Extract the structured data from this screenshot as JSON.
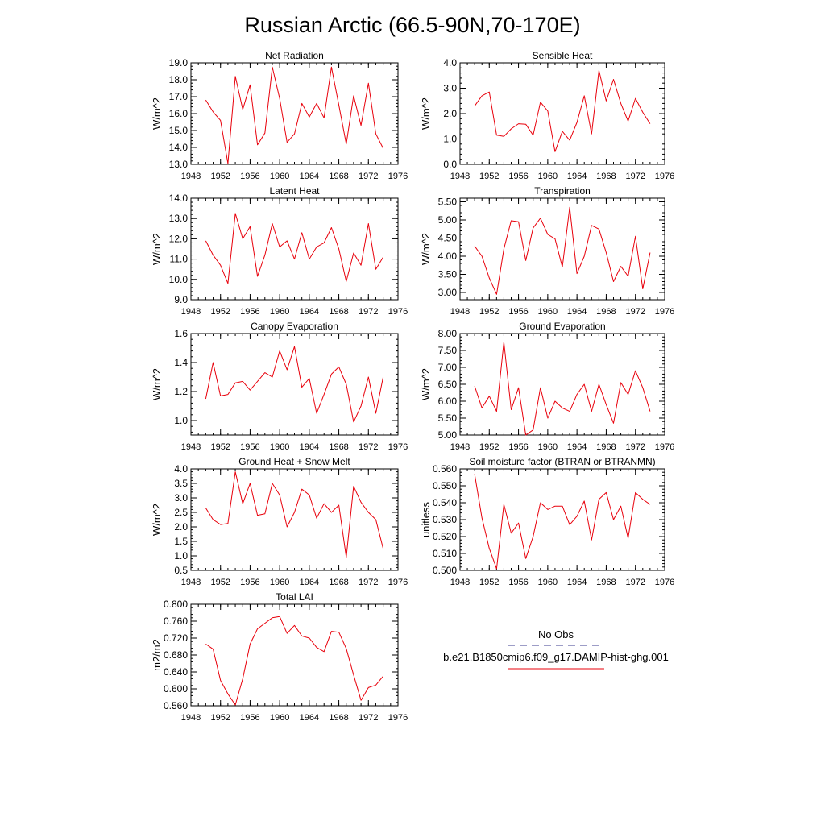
{
  "title": "Russian Arctic (66.5-90N,70-170E)",
  "colors": {
    "model_line": "#e8000b",
    "obs_line": "#3b3b8f",
    "axis": "#000000"
  },
  "legend": {
    "obs_label": "No Obs",
    "model_label": "b.e21.B1850cmip6.f09_g17.DAMIP-hist-ghg.001"
  },
  "chart_data": [
    {
      "type": "line",
      "title": "Net Radiation",
      "ylabel": "W/m^2",
      "xlim": [
        1948,
        1976
      ],
      "ylim": [
        13.0,
        19.0
      ],
      "xticks": [
        "1948",
        "1952",
        "1956",
        "1960",
        "1964",
        "1968",
        "1972",
        "1976"
      ],
      "yticks": [
        "13.0",
        "14.0",
        "15.0",
        "16.0",
        "17.0",
        "18.0",
        "19.0"
      ],
      "x": [
        1950,
        1951,
        1952,
        1953,
        1954,
        1955,
        1956,
        1957,
        1958,
        1959,
        1960,
        1961,
        1962,
        1963,
        1964,
        1965,
        1966,
        1967,
        1968,
        1969,
        1970,
        1971,
        1972,
        1973,
        1974
      ],
      "series": [
        {
          "values": [
            16.8,
            16.1,
            15.6,
            13.05,
            18.2,
            16.25,
            17.7,
            14.15,
            14.85,
            18.75,
            16.9,
            14.3,
            14.8,
            16.6,
            15.8,
            16.6,
            15.75,
            18.75,
            16.5,
            14.2,
            17.05,
            15.3,
            17.8,
            14.8,
            13.95
          ]
        }
      ]
    },
    {
      "type": "line",
      "title": "Sensible Heat",
      "ylabel": "W/m^2",
      "xlim": [
        1948,
        1976
      ],
      "ylim": [
        0.0,
        4.0
      ],
      "xticks": [
        "1948",
        "1952",
        "1956",
        "1960",
        "1964",
        "1968",
        "1972",
        "1976"
      ],
      "yticks": [
        "0.0",
        "1.0",
        "2.0",
        "3.0",
        "4.0"
      ],
      "x": [
        1950,
        1951,
        1952,
        1953,
        1954,
        1955,
        1956,
        1957,
        1958,
        1959,
        1960,
        1961,
        1962,
        1963,
        1964,
        1965,
        1966,
        1967,
        1968,
        1969,
        1970,
        1971,
        1972,
        1973,
        1974
      ],
      "series": [
        {
          "values": [
            2.3,
            2.7,
            2.85,
            1.15,
            1.1,
            1.4,
            1.6,
            1.58,
            1.15,
            2.45,
            2.1,
            0.5,
            1.3,
            0.95,
            1.65,
            2.7,
            1.2,
            3.7,
            2.5,
            3.35,
            2.4,
            1.7,
            2.6,
            2.05,
            1.6
          ]
        }
      ]
    },
    {
      "type": "line",
      "title": "Latent Heat",
      "ylabel": "W/m^2",
      "xlim": [
        1948,
        1976
      ],
      "ylim": [
        9.0,
        14.0
      ],
      "xticks": [
        "1948",
        "1952",
        "1956",
        "1960",
        "1964",
        "1968",
        "1972",
        "1976"
      ],
      "yticks": [
        "9.0",
        "10.0",
        "11.0",
        "12.0",
        "13.0",
        "14.0"
      ],
      "x": [
        1950,
        1951,
        1952,
        1953,
        1954,
        1955,
        1956,
        1957,
        1958,
        1959,
        1960,
        1961,
        1962,
        1963,
        1964,
        1965,
        1966,
        1967,
        1968,
        1969,
        1970,
        1971,
        1972,
        1973,
        1974
      ],
      "series": [
        {
          "values": [
            11.9,
            11.2,
            10.7,
            9.8,
            13.25,
            12.0,
            12.6,
            10.15,
            11.2,
            12.75,
            11.6,
            11.9,
            11.0,
            12.3,
            11.0,
            11.6,
            11.8,
            12.55,
            11.5,
            9.9,
            11.3,
            10.7,
            12.75,
            10.5,
            11.1
          ]
        }
      ]
    },
    {
      "type": "line",
      "title": "Transpiration",
      "ylabel": "W/m^2",
      "xlim": [
        1948,
        1976
      ],
      "ylim": [
        2.8,
        5.6
      ],
      "xticks": [
        "1948",
        "1952",
        "1956",
        "1960",
        "1964",
        "1968",
        "1972",
        "1976"
      ],
      "yticks": [
        "3.00",
        "3.50",
        "4.00",
        "4.50",
        "5.00",
        "5.50"
      ],
      "ytick_values": [
        3.0,
        3.5,
        4.0,
        4.5,
        5.0,
        5.5
      ],
      "x": [
        1950,
        1951,
        1952,
        1953,
        1954,
        1955,
        1956,
        1957,
        1958,
        1959,
        1960,
        1961,
        1962,
        1963,
        1964,
        1965,
        1966,
        1967,
        1968,
        1969,
        1970,
        1971,
        1972,
        1973,
        1974
      ],
      "series": [
        {
          "values": [
            4.28,
            4.0,
            3.4,
            2.95,
            4.2,
            4.98,
            4.95,
            3.88,
            4.78,
            5.05,
            4.6,
            4.48,
            3.7,
            5.35,
            3.52,
            4.0,
            4.85,
            4.75,
            4.1,
            3.3,
            3.72,
            3.45,
            4.55,
            3.1,
            4.1
          ]
        }
      ]
    },
    {
      "type": "line",
      "title": "Canopy Evaporation",
      "ylabel": "W/m^2",
      "xlim": [
        1948,
        1976
      ],
      "ylim": [
        0.9,
        1.6
      ],
      "xticks": [
        "1948",
        "1952",
        "1956",
        "1960",
        "1964",
        "1968",
        "1972",
        "1976"
      ],
      "yticks": [
        "1.0",
        "1.2",
        "1.4",
        "1.6"
      ],
      "ytick_values": [
        1.0,
        1.2,
        1.4,
        1.6
      ],
      "x": [
        1950,
        1951,
        1952,
        1953,
        1954,
        1955,
        1956,
        1957,
        1958,
        1959,
        1960,
        1961,
        1962,
        1963,
        1964,
        1965,
        1966,
        1967,
        1968,
        1969,
        1970,
        1971,
        1972,
        1973,
        1974
      ],
      "series": [
        {
          "values": [
            1.15,
            1.4,
            1.17,
            1.18,
            1.26,
            1.27,
            1.21,
            1.27,
            1.33,
            1.3,
            1.48,
            1.35,
            1.51,
            1.23,
            1.29,
            1.05,
            1.18,
            1.32,
            1.37,
            1.25,
            0.99,
            1.1,
            1.3,
            1.05,
            1.3
          ]
        }
      ]
    },
    {
      "type": "line",
      "title": "Ground Evaporation",
      "ylabel": "W/m^2",
      "xlim": [
        1948,
        1976
      ],
      "ylim": [
        5.0,
        8.0
      ],
      "xticks": [
        "1948",
        "1952",
        "1956",
        "1960",
        "1964",
        "1968",
        "1972",
        "1976"
      ],
      "yticks": [
        "5.00",
        "5.50",
        "6.00",
        "6.50",
        "7.00",
        "7.50",
        "8.00"
      ],
      "x": [
        1950,
        1951,
        1952,
        1953,
        1954,
        1955,
        1956,
        1957,
        1958,
        1959,
        1960,
        1961,
        1962,
        1963,
        1964,
        1965,
        1966,
        1967,
        1968,
        1969,
        1970,
        1971,
        1972,
        1973,
        1974
      ],
      "series": [
        {
          "values": [
            6.45,
            5.8,
            6.15,
            5.7,
            7.75,
            5.75,
            6.4,
            5.0,
            5.15,
            6.4,
            5.5,
            6.0,
            5.8,
            5.7,
            6.2,
            6.5,
            5.7,
            6.5,
            5.9,
            5.35,
            6.55,
            6.2,
            6.9,
            6.4,
            5.7
          ]
        }
      ]
    },
    {
      "type": "line",
      "title": "Ground Heat + Snow Melt",
      "ylabel": "W/m^2",
      "xlim": [
        1948,
        1976
      ],
      "ylim": [
        0.5,
        4.0
      ],
      "xticks": [
        "1948",
        "1952",
        "1956",
        "1960",
        "1964",
        "1968",
        "1972",
        "1976"
      ],
      "yticks": [
        "0.5",
        "1.0",
        "1.5",
        "2.0",
        "2.5",
        "3.0",
        "3.5",
        "4.0"
      ],
      "x": [
        1950,
        1951,
        1952,
        1953,
        1954,
        1955,
        1956,
        1957,
        1958,
        1959,
        1960,
        1961,
        1962,
        1963,
        1964,
        1965,
        1966,
        1967,
        1968,
        1969,
        1970,
        1971,
        1972,
        1973,
        1974
      ],
      "series": [
        {
          "values": [
            2.65,
            2.25,
            2.08,
            2.12,
            3.9,
            2.8,
            3.5,
            2.4,
            2.45,
            3.5,
            3.1,
            2.0,
            2.5,
            3.3,
            3.1,
            2.3,
            2.8,
            2.5,
            2.75,
            0.95,
            3.4,
            2.85,
            2.5,
            2.25,
            1.25
          ]
        }
      ]
    },
    {
      "type": "line",
      "title": "Soil moisture factor (BTRAN or BTRANMN)",
      "ylabel": "unitless",
      "xlim": [
        1948,
        1976
      ],
      "ylim": [
        0.5,
        0.56
      ],
      "xticks": [
        "1948",
        "1952",
        "1956",
        "1960",
        "1964",
        "1968",
        "1972",
        "1976"
      ],
      "yticks": [
        "0.500",
        "0.510",
        "0.520",
        "0.530",
        "0.540",
        "0.550",
        "0.560"
      ],
      "x": [
        1950,
        1951,
        1952,
        1953,
        1954,
        1955,
        1956,
        1957,
        1958,
        1959,
        1960,
        1961,
        1962,
        1963,
        1964,
        1965,
        1966,
        1967,
        1968,
        1969,
        1970,
        1971,
        1972,
        1973,
        1974
      ],
      "series": [
        {
          "values": [
            0.557,
            0.531,
            0.513,
            0.501,
            0.539,
            0.522,
            0.528,
            0.507,
            0.52,
            0.54,
            0.536,
            0.538,
            0.538,
            0.527,
            0.532,
            0.541,
            0.518,
            0.542,
            0.546,
            0.53,
            0.538,
            0.519,
            0.546,
            0.542,
            0.539
          ]
        }
      ]
    },
    {
      "type": "line",
      "title": "Total LAI",
      "ylabel": "m2/m2",
      "xlim": [
        1948,
        1976
      ],
      "ylim": [
        0.56,
        0.8
      ],
      "xticks": [
        "1948",
        "1952",
        "1956",
        "1960",
        "1964",
        "1968",
        "1972",
        "1976"
      ],
      "yticks": [
        "0.560",
        "0.600",
        "0.640",
        "0.680",
        "0.720",
        "0.760",
        "0.800"
      ],
      "x": [
        1950,
        1951,
        1952,
        1953,
        1954,
        1955,
        1956,
        1957,
        1958,
        1959,
        1960,
        1961,
        1962,
        1963,
        1964,
        1965,
        1966,
        1967,
        1968,
        1969,
        1970,
        1971,
        1972,
        1973,
        1974
      ],
      "series": [
        {
          "values": [
            0.706,
            0.694,
            0.62,
            0.588,
            0.562,
            0.624,
            0.706,
            0.742,
            0.755,
            0.768,
            0.771,
            0.731,
            0.75,
            0.725,
            0.72,
            0.698,
            0.688,
            0.736,
            0.734,
            0.695,
            0.633,
            0.573,
            0.603,
            0.609,
            0.63
          ]
        }
      ]
    }
  ]
}
